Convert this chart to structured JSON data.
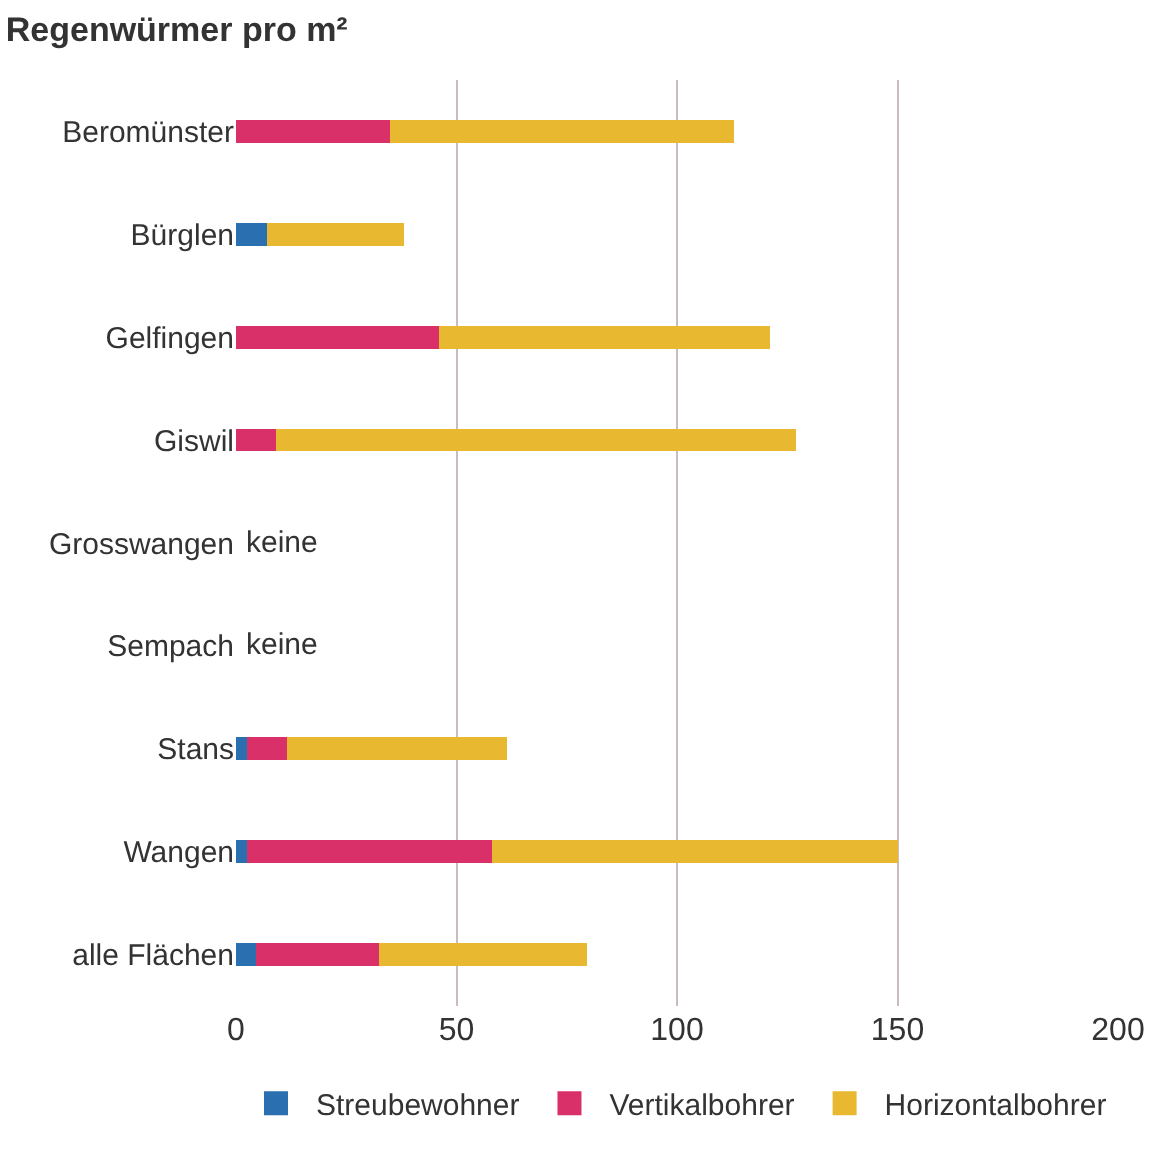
{
  "chart_data": {
    "type": "bar",
    "orientation": "horizontal",
    "stacked": true,
    "title": "Regenwürmer pro m²",
    "categories": [
      "Beromünster",
      "Bürglen",
      "Gelfingen",
      "Giswil",
      "Grosswangen",
      "Sempach",
      "Stans",
      "Wangen",
      "alle Flächen"
    ],
    "series": [
      {
        "name": "Streubewohner",
        "color": "#2a6fb0",
        "values": [
          0,
          7,
          0,
          0,
          0,
          0,
          2.5,
          2.5,
          4.5
        ]
      },
      {
        "name": "Vertikalbohrer",
        "color": "#d9306a",
        "values": [
          35,
          0,
          46,
          9,
          0,
          0,
          9,
          55.5,
          28
        ]
      },
      {
        "name": "Horizontalbohrer",
        "color": "#e8b830",
        "values": [
          78,
          31,
          75,
          118,
          0,
          0,
          50,
          92,
          47
        ]
      }
    ],
    "xlim": [
      0,
      200
    ],
    "xticks": [
      0,
      50,
      100,
      150,
      200
    ],
    "grid": "x",
    "legend": "bottom",
    "annotations": [
      {
        "text": "keine",
        "x": 0,
        "y": "Grosswangen"
      },
      {
        "text": "keine",
        "x": 0,
        "y": "Sempach"
      }
    ]
  }
}
